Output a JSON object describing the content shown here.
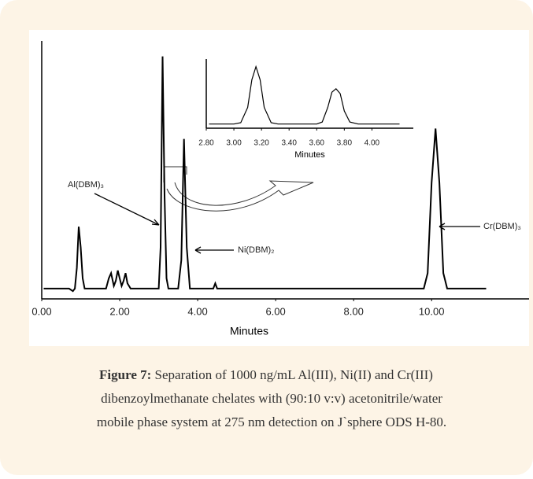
{
  "chart_data": [
    {
      "type": "line",
      "x": [
        0.05,
        0.7,
        0.8,
        0.85,
        0.9,
        0.95,
        1.0,
        1.05,
        1.1,
        1.65,
        1.72,
        1.78,
        1.85,
        1.9,
        1.95,
        2.0,
        2.05,
        2.1,
        2.15,
        2.2,
        2.28,
        3.0,
        3.05,
        3.1,
        3.15,
        3.2,
        3.25,
        3.5,
        3.58,
        3.65,
        3.72,
        3.8,
        4.4,
        4.45,
        4.5,
        9.8,
        9.9,
        10.0,
        10.1,
        10.2,
        10.3,
        10.4,
        11.4
      ],
      "series": [
        {
          "color": "#000000",
          "values": [
            4,
            4,
            3,
            4,
            12,
            28,
            20,
            8,
            4,
            4,
            8,
            10,
            5,
            7,
            11,
            8,
            5,
            7,
            10,
            6,
            4,
            4,
            20,
            94,
            40,
            8,
            4,
            4,
            15,
            62,
            20,
            4,
            4,
            6,
            4,
            4,
            10,
            45,
            66,
            45,
            10,
            4,
            4
          ]
        }
      ],
      "xlim": [
        0,
        12.5
      ],
      "xticks": [
        {
          "value": 0,
          "label": "0.00"
        },
        {
          "value": 2,
          "label": "2.00"
        },
        {
          "value": 4,
          "label": "4.00"
        },
        {
          "value": 6,
          "label": "6.00"
        },
        {
          "value": 8,
          "label": "8.00"
        },
        {
          "value": 10,
          "label": "10.00"
        }
      ],
      "ylim": [
        0,
        100
      ],
      "xlabel": "Minutes",
      "annotations": [
        "Al(DBM)₃",
        "Ni(DBM)₂",
        "Cr(DBM)₃"
      ]
    },
    {
      "type": "line",
      "x": [
        2.82,
        3.0,
        3.05,
        3.1,
        3.13,
        3.16,
        3.19,
        3.22,
        3.27,
        3.32,
        3.6,
        3.64,
        3.68,
        3.71,
        3.74,
        3.77,
        3.8,
        3.84,
        3.9,
        4.2
      ],
      "series": [
        {
          "color": "#000000",
          "values": [
            6,
            6,
            8,
            30,
            70,
            89,
            70,
            30,
            8,
            6,
            6,
            9,
            30,
            52,
            57,
            50,
            25,
            9,
            6,
            6
          ]
        }
      ],
      "xlim": [
        2.8,
        4.3
      ],
      "xticks": [
        {
          "value": 2.8,
          "label": "2.80"
        },
        {
          "value": 3.0,
          "label": "3.00"
        },
        {
          "value": 3.2,
          "label": "3.20"
        },
        {
          "value": 3.4,
          "label": "3.40"
        },
        {
          "value": 3.6,
          "label": "3.60"
        },
        {
          "value": 3.8,
          "label": "3.80"
        },
        {
          "value": 4.0,
          "label": "4.00"
        }
      ],
      "ylim": [
        0,
        100
      ],
      "xlabel": "Minutes"
    }
  ],
  "caption": {
    "label": "Figure 7:",
    "lines": [
      "Separation of 1000 ng/mL Al(III), Ni(II) and Cr(III)",
      "dibenzoylmethanate chelates with (90:10 v:v) acetonitrile/water",
      "mobile phase system at 275 nm detection on J`sphere ODS H-80."
    ]
  }
}
